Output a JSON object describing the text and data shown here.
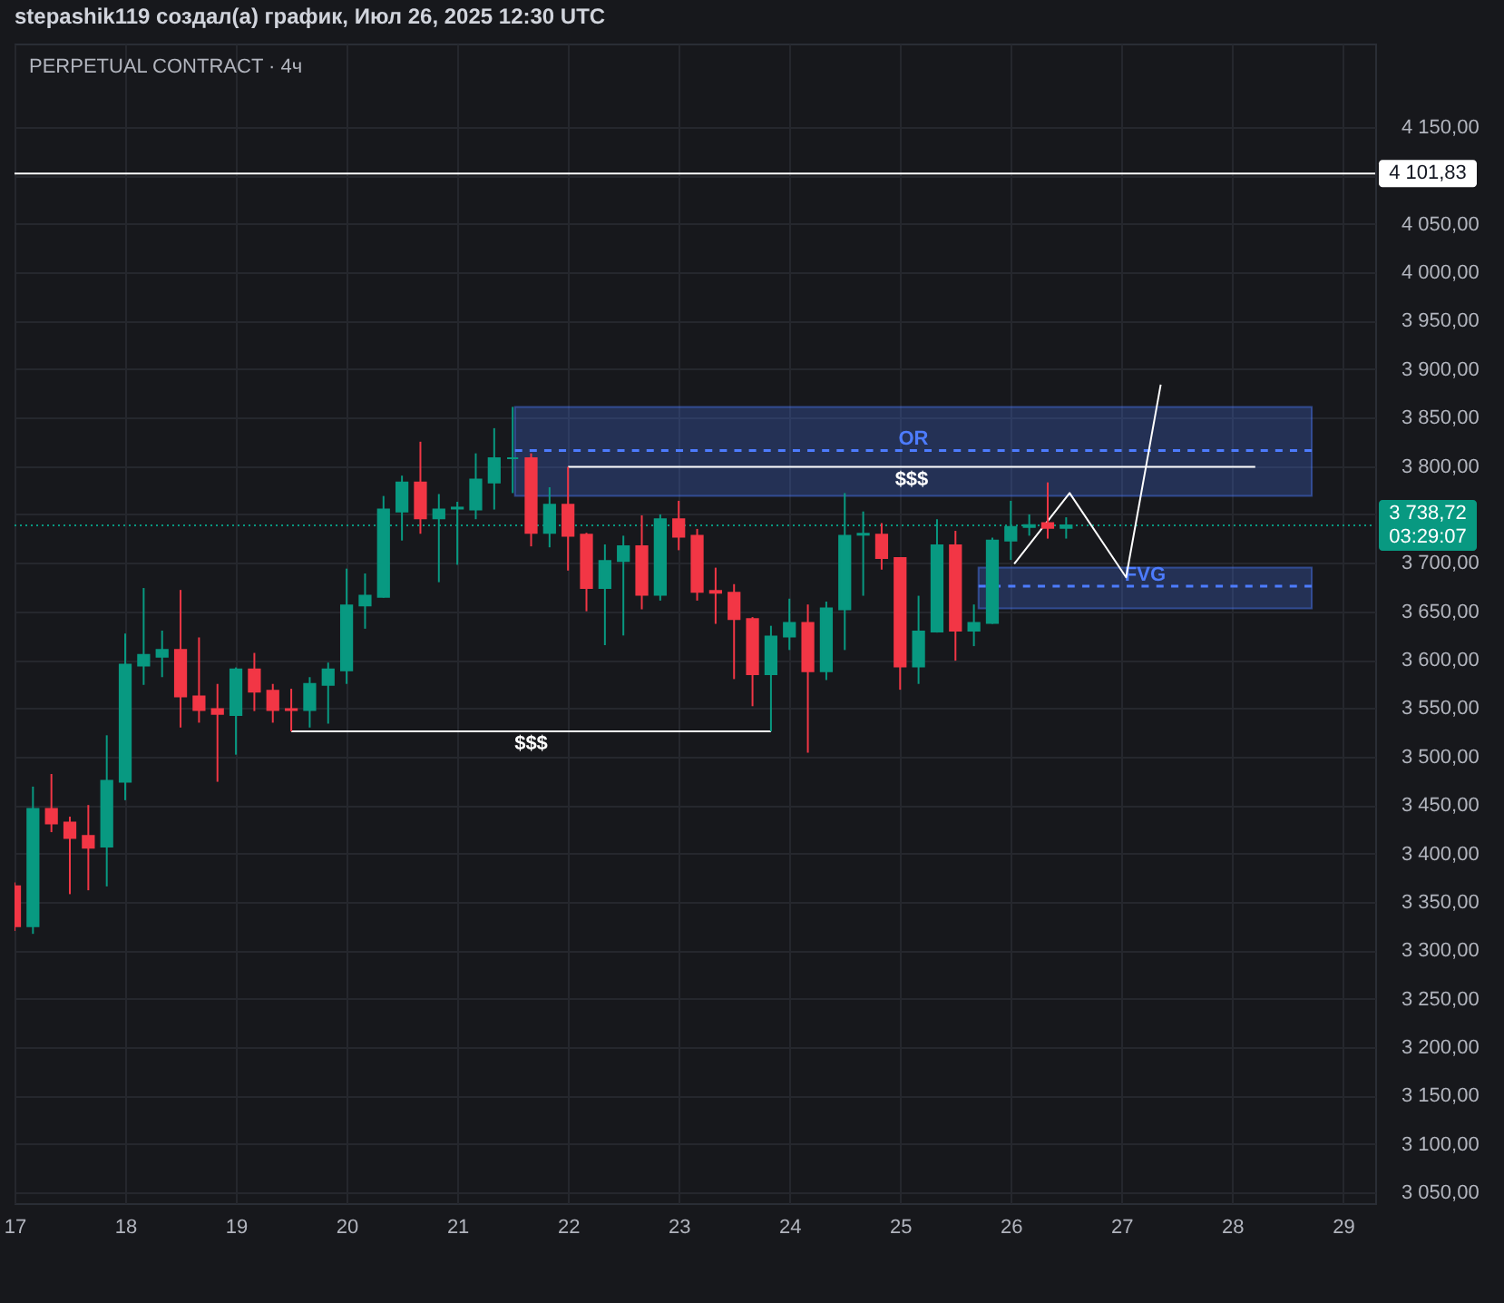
{
  "chart_data": {
    "type": "candlestick",
    "title": "stepashik119 создал(а) график, Июл 26, 2025 12:30 UTC",
    "subtitle": "PERPETUAL CONTRACT · 4ч",
    "x": [
      "2025-07-17T00:00",
      "2025-07-17T04:00",
      "2025-07-17T08:00",
      "2025-07-17T12:00",
      "2025-07-17T16:00",
      "2025-07-17T20:00",
      "2025-07-18T00:00",
      "2025-07-18T04:00",
      "2025-07-18T08:00",
      "2025-07-18T12:00",
      "2025-07-18T16:00",
      "2025-07-18T20:00",
      "2025-07-19T00:00",
      "2025-07-19T04:00",
      "2025-07-19T08:00",
      "2025-07-19T12:00",
      "2025-07-19T16:00",
      "2025-07-19T20:00",
      "2025-07-20T00:00",
      "2025-07-20T04:00",
      "2025-07-20T08:00",
      "2025-07-20T12:00",
      "2025-07-20T16:00",
      "2025-07-20T20:00",
      "2025-07-21T00:00",
      "2025-07-21T04:00",
      "2025-07-21T08:00",
      "2025-07-21T12:00",
      "2025-07-21T16:00",
      "2025-07-21T20:00",
      "2025-07-22T00:00",
      "2025-07-22T04:00",
      "2025-07-22T08:00",
      "2025-07-22T12:00",
      "2025-07-22T16:00",
      "2025-07-22T20:00",
      "2025-07-23T00:00",
      "2025-07-23T04:00",
      "2025-07-23T08:00",
      "2025-07-23T12:00",
      "2025-07-23T16:00",
      "2025-07-23T20:00",
      "2025-07-24T00:00",
      "2025-07-24T04:00",
      "2025-07-24T08:00",
      "2025-07-24T12:00",
      "2025-07-24T16:00",
      "2025-07-24T20:00",
      "2025-07-25T00:00",
      "2025-07-25T04:00",
      "2025-07-25T08:00",
      "2025-07-25T12:00",
      "2025-07-25T16:00",
      "2025-07-25T20:00",
      "2025-07-26T00:00",
      "2025-07-26T04:00",
      "2025-07-26T08:00",
      "2025-07-26T12:00"
    ],
    "ohlc": [
      [
        3366,
        3370,
        3320,
        3325
      ],
      [
        3325,
        3469,
        3317,
        3446
      ],
      [
        3446,
        3482,
        3422,
        3431
      ],
      [
        3432,
        3438,
        3358,
        3416
      ],
      [
        3418,
        3450,
        3362,
        3406
      ],
      [
        3407,
        3522,
        3366,
        3475
      ],
      [
        3474,
        3627,
        3455,
        3595
      ],
      [
        3594,
        3674,
        3574,
        3605
      ],
      [
        3603,
        3630,
        3582,
        3610
      ],
      [
        3610,
        3672,
        3530,
        3562
      ],
      [
        3562,
        3623,
        3535,
        3548
      ],
      [
        3549,
        3575,
        3474,
        3544
      ],
      [
        3543,
        3592,
        3502,
        3590
      ],
      [
        3590,
        3607,
        3547,
        3567
      ],
      [
        3568,
        3575,
        3535,
        3548
      ],
      [
        3549,
        3570,
        3526,
        3548
      ],
      [
        3548,
        3582,
        3530,
        3575
      ],
      [
        3574,
        3597,
        3534,
        3590
      ],
      [
        3589,
        3694,
        3575,
        3656
      ],
      [
        3656,
        3689,
        3632,
        3666
      ],
      [
        3665,
        3769,
        3664,
        3755
      ],
      [
        3753,
        3790,
        3723,
        3783
      ],
      [
        3783,
        3825,
        3730,
        3746
      ],
      [
        3746,
        3771,
        3680,
        3755
      ],
      [
        3756,
        3763,
        3698,
        3757
      ],
      [
        3755,
        3813,
        3745,
        3786
      ],
      [
        3783,
        3839,
        3755,
        3808
      ],
      [
        3808,
        3861,
        3772,
        3808
      ],
      [
        3808,
        3813,
        3717,
        3731
      ],
      [
        3731,
        3778,
        3716,
        3760
      ],
      [
        3760,
        3799,
        3692,
        3728
      ],
      [
        3729,
        3731,
        3650,
        3674
      ],
      [
        3674,
        3719,
        3615,
        3702
      ],
      [
        3702,
        3728,
        3625,
        3717
      ],
      [
        3717,
        3749,
        3652,
        3667
      ],
      [
        3667,
        3750,
        3661,
        3745
      ],
      [
        3745,
        3764,
        3713,
        3727
      ],
      [
        3728,
        3735,
        3661,
        3670
      ],
      [
        3671,
        3695,
        3637,
        3669
      ],
      [
        3669,
        3678,
        3580,
        3642
      ],
      [
        3642,
        3644,
        3552,
        3585
      ],
      [
        3585,
        3635,
        3526,
        3624
      ],
      [
        3624,
        3663,
        3610,
        3638
      ],
      [
        3638,
        3657,
        3504,
        3588
      ],
      [
        3588,
        3660,
        3579,
        3653
      ],
      [
        3652,
        3772,
        3610,
        3728
      ],
      [
        3729,
        3753,
        3666,
        3730
      ],
      [
        3729,
        3741,
        3693,
        3705
      ],
      [
        3705,
        3705,
        3569,
        3593
      ],
      [
        3593,
        3666,
        3575,
        3629
      ],
      [
        3629,
        3745,
        3628,
        3718
      ],
      [
        3718,
        3733,
        3599,
        3630
      ],
      [
        3630,
        3657,
        3614,
        3638
      ],
      [
        3638,
        3726,
        3637,
        3723
      ],
      [
        3723,
        3764,
        3703,
        3737
      ],
      [
        3737,
        3750,
        3728,
        3739
      ],
      [
        3741,
        3783,
        3725,
        3736
      ],
      [
        3736,
        3747,
        3725,
        3738.72
      ]
    ],
    "colors": [
      "#f23645",
      "#089981",
      "#f23645",
      "#f23645",
      "#f23645",
      "#089981",
      "#089981",
      "#089981",
      "#089981",
      "#f23645",
      "#f23645",
      "#f23645",
      "#089981",
      "#f23645",
      "#f23645",
      "#f23645",
      "#089981",
      "#089981",
      "#089981",
      "#089981",
      "#089981",
      "#089981",
      "#f23645",
      "#089981",
      "#089981",
      "#089981",
      "#089981",
      "#089981",
      "#f23645",
      "#089981",
      "#f23645",
      "#f23645",
      "#089981",
      "#089981",
      "#f23645",
      "#089981",
      "#f23645",
      "#f23645",
      "#f23645",
      "#f23645",
      "#f23645",
      "#089981",
      "#089981",
      "#f23645",
      "#089981",
      "#089981",
      "#089981",
      "#f23645",
      "#f23645",
      "#089981",
      "#089981",
      "#f23645",
      "#089981",
      "#089981",
      "#089981",
      "#089981",
      "#f23645",
      "#089981"
    ],
    "series": [
      {
        "name": "OR",
        "type": "line",
        "line_style": "dashed",
        "color": "#4d7cff",
        "x": [
          "2025-07-21T12:30",
          "2025-07-28T17:15"
        ],
        "values": [
          3816,
          3816
        ],
        "lower": [
          3769,
          3769
        ],
        "upper": [
          3861,
          3861
        ]
      },
      {
        "name": "$$$",
        "type": "line",
        "line_style": "solid",
        "color": "#ffffff",
        "x": [
          "2025-07-22T00:00",
          "2025-07-28T05:00"
        ],
        "values": [
          3799,
          3799
        ]
      },
      {
        "name": "FVG",
        "type": "line",
        "line_style": "dashed",
        "color": "#4d7cff",
        "x": [
          "2025-07-25T17:00",
          "2025-07-28T17:15"
        ],
        "values": [
          3676,
          3676
        ],
        "lower": [
          3653,
          3653
        ],
        "upper": [
          3695,
          3695
        ]
      },
      {
        "name": "$$$",
        "type": "line",
        "line_style": "solid",
        "color": "#ffffff",
        "x": [
          "2025-07-19T12:00",
          "2025-07-23T20:00"
        ],
        "values": [
          3526,
          3526
        ]
      },
      {
        "type": "line",
        "line_style": "solid",
        "color": "#ffffff",
        "x": [
          "2025-07-26T00:45",
          "2025-07-26T12:45",
          "2025-07-27T01:00",
          "2025-07-27T08:30"
        ],
        "values": [
          3699,
          3772,
          3685,
          3884
        ]
      }
    ],
    "ref_lines": [
      {
        "axis": "y",
        "value": 4101.83,
        "label": "4 101,83",
        "color": "#ffffff",
        "line_style": "solid"
      },
      {
        "axis": "y",
        "value": 3738.72,
        "label": "3 738,72",
        "color": "#089981",
        "line_style": "dotted"
      }
    ],
    "annotations": [
      "03:29:07"
    ],
    "xlim": [
      "2025-07-17T00:00",
      "2025-07-29T07:00"
    ],
    "ylim": [
      3039,
      4236
    ],
    "xticks": [
      {
        "value": "2025-07-17",
        "label": "17"
      },
      {
        "value": "2025-07-18",
        "label": "18"
      },
      {
        "value": "2025-07-19",
        "label": "19"
      },
      {
        "value": "2025-07-20",
        "label": "20"
      },
      {
        "value": "2025-07-21",
        "label": "21"
      },
      {
        "value": "2025-07-22",
        "label": "22"
      },
      {
        "value": "2025-07-23",
        "label": "23"
      },
      {
        "value": "2025-07-24",
        "label": "24"
      },
      {
        "value": "2025-07-25",
        "label": "25"
      },
      {
        "value": "2025-07-26",
        "label": "26"
      },
      {
        "value": "2025-07-27",
        "label": "27"
      },
      {
        "value": "2025-07-28",
        "label": "28"
      },
      {
        "value": "2025-07-29",
        "label": "29"
      }
    ],
    "yticks": [
      {
        "value": 3050,
        "label": "3 050,00"
      },
      {
        "value": 3100,
        "label": "3 100,00"
      },
      {
        "value": 3150,
        "label": "3 150,00"
      },
      {
        "value": 3200,
        "label": "3 200,00"
      },
      {
        "value": 3250,
        "label": "3 250,00"
      },
      {
        "value": 3300,
        "label": "3 300,00"
      },
      {
        "value": 3350,
        "label": "3 350,00"
      },
      {
        "value": 3400,
        "label": "3 400,00"
      },
      {
        "value": 3450,
        "label": "3 450,00"
      },
      {
        "value": 3500,
        "label": "3 500,00"
      },
      {
        "value": 3550,
        "label": "3 550,00"
      },
      {
        "value": 3600,
        "label": "3 600,00"
      },
      {
        "value": 3650,
        "label": "3 650,00"
      },
      {
        "value": 3700,
        "label": "3 700,00"
      },
      {
        "value": 3750,
        "label": null
      },
      {
        "value": 3800,
        "label": "3 800,00"
      },
      {
        "value": 3850,
        "label": "3 850,00"
      },
      {
        "value": 3900,
        "label": "3 900,00"
      },
      {
        "value": 3950,
        "label": "3 950,00"
      },
      {
        "value": 4000,
        "label": "4 000,00"
      },
      {
        "value": 4050,
        "label": "4 050,00"
      },
      {
        "value": 4100,
        "label": null
      },
      {
        "value": 4150,
        "label": "4 150,00"
      }
    ],
    "grid": true
  }
}
